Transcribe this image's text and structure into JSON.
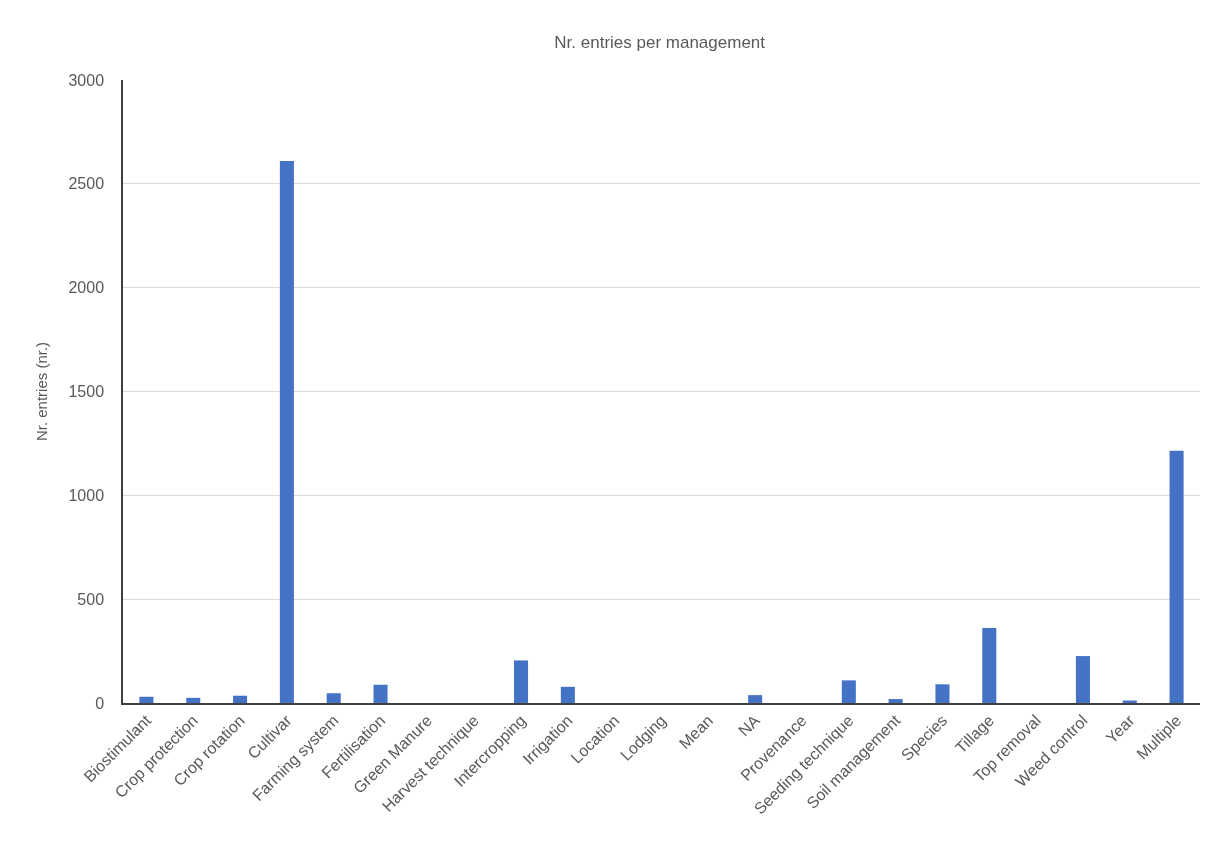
{
  "chart_data": {
    "type": "bar",
    "title": "Nr. entries per management",
    "ylabel": "Nr. entries (nr.)",
    "categories": [
      "Biostimulant",
      "Crop protection",
      "Crop rotation",
      "Cultivar",
      "Farming system",
      "Fertilisation",
      "Green Manure",
      "Harvest technique",
      "Intercropping",
      "Irrigation",
      "Location",
      "Lodging",
      "Mean",
      "NA",
      "Provenance",
      "Seeding technique",
      "Soil management",
      "Species",
      "Tillage",
      "Top removal",
      "Weed control",
      "Year",
      "Multiple"
    ],
    "values": [
      30,
      25,
      35,
      2610,
      47,
      88,
      0,
      0,
      205,
      78,
      0,
      0,
      0,
      38,
      0,
      109,
      19,
      90,
      361,
      0,
      226,
      12,
      1215
    ],
    "color": "#4472c4",
    "ylim": [
      0,
      3000
    ],
    "yticks": [
      0,
      500,
      1000,
      1500,
      2000,
      2500,
      3000
    ],
    "grid": "y"
  }
}
